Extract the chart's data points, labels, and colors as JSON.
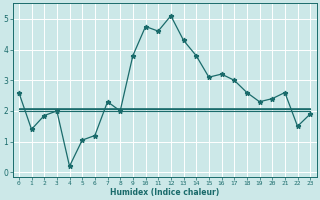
{
  "xlabel": "Humidex (Indice chaleur)",
  "background_color": "#cce8e8",
  "grid_color": "#ffffff",
  "line_color": "#1a6b6b",
  "xlim": [
    -0.5,
    23.5
  ],
  "ylim": [
    -0.15,
    5.5
  ],
  "x_ticks": [
    0,
    1,
    2,
    3,
    4,
    5,
    6,
    7,
    8,
    9,
    10,
    11,
    12,
    13,
    14,
    15,
    16,
    17,
    18,
    19,
    20,
    21,
    22,
    23
  ],
  "y_ticks": [
    0,
    1,
    2,
    3,
    4,
    5
  ],
  "series1_x": [
    0,
    1,
    2,
    3,
    4,
    5,
    6,
    7,
    8,
    9,
    10,
    11,
    12,
    13,
    14,
    15,
    16,
    17,
    18,
    19,
    20,
    21,
    22,
    23
  ],
  "series1_y": [
    2.6,
    1.4,
    1.85,
    2.0,
    0.2,
    1.05,
    1.2,
    2.3,
    2.0,
    3.8,
    4.75,
    4.6,
    5.1,
    4.3,
    3.8,
    3.1,
    3.2,
    3.0,
    2.6,
    2.3,
    2.4,
    2.6,
    1.5,
    1.9
  ],
  "flat1_y": 2.0,
  "flat2_y": 2.05,
  "flat3_y": 2.1,
  "flat_start": 0,
  "flat_end": 23
}
